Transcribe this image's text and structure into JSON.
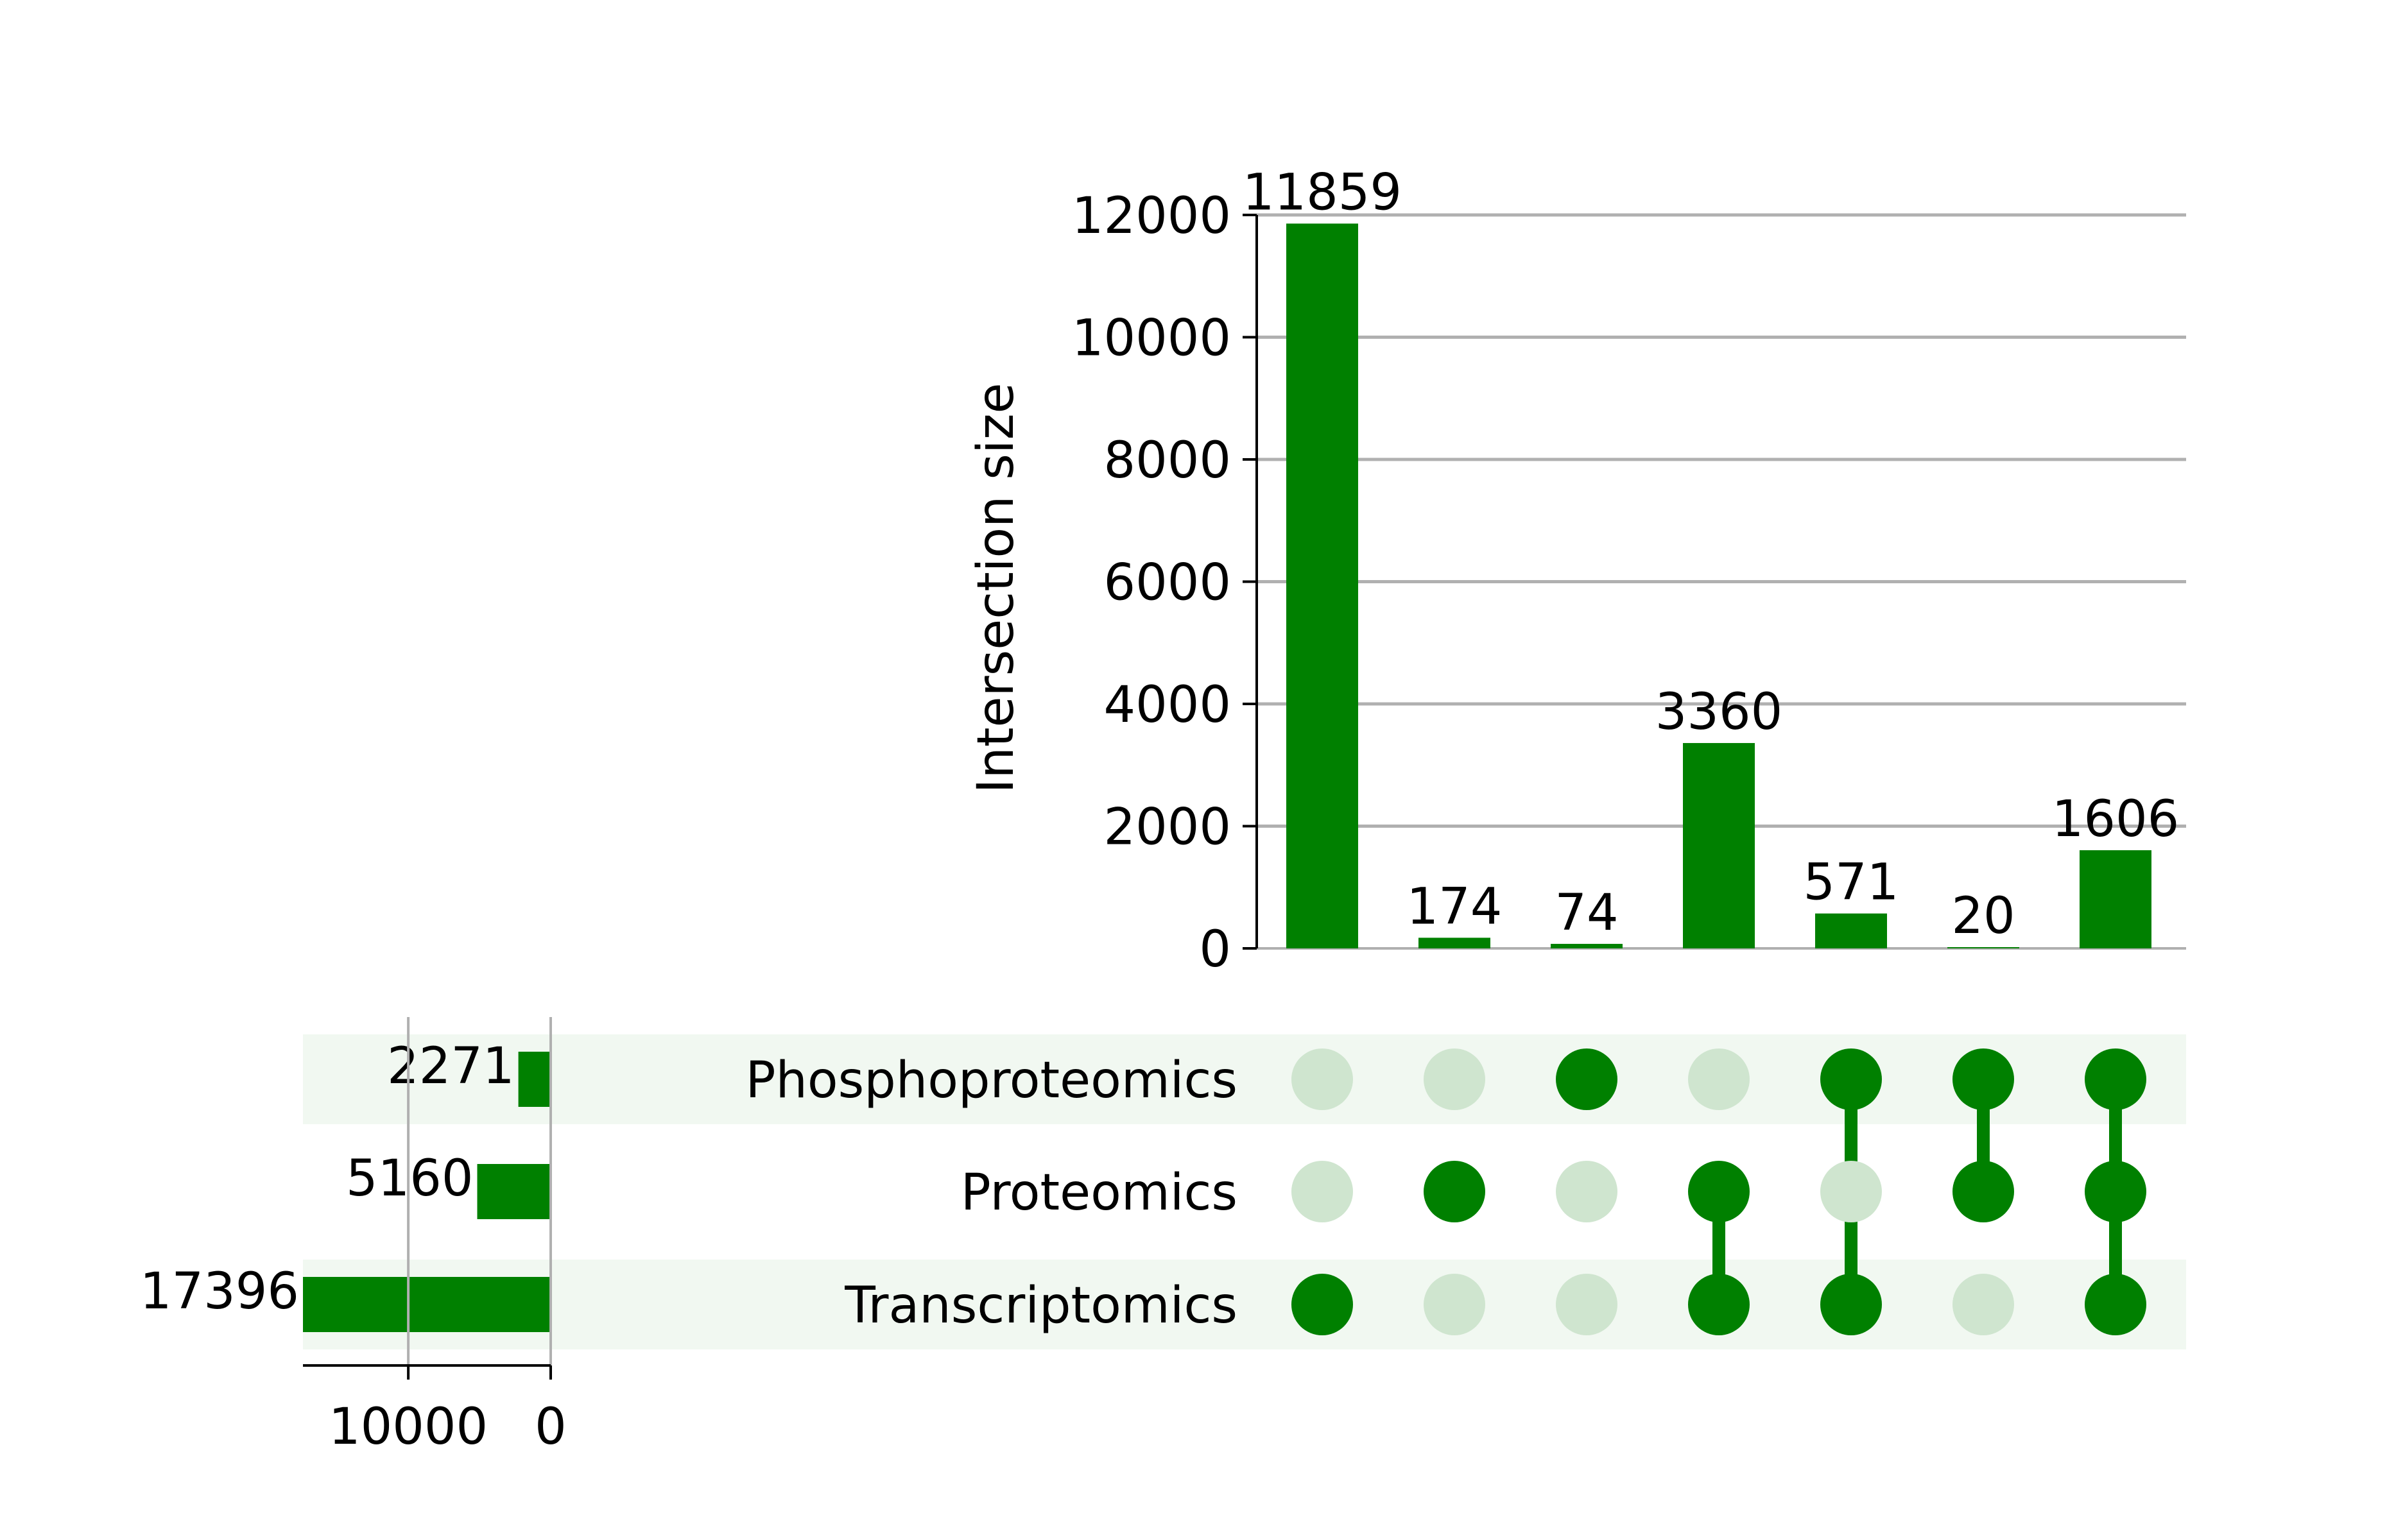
{
  "chart_data": {
    "type": "upset",
    "sets": [
      "Phosphoproteomics",
      "Proteomics",
      "Transcriptomics"
    ],
    "set_sizes": [
      2271,
      5160,
      17396
    ],
    "intersections": [
      {
        "members": [
          "Transcriptomics"
        ],
        "size": 11859
      },
      {
        "members": [
          "Proteomics"
        ],
        "size": 174
      },
      {
        "members": [
          "Phosphoproteomics"
        ],
        "size": 74
      },
      {
        "members": [
          "Proteomics",
          "Transcriptomics"
        ],
        "size": 3360
      },
      {
        "members": [
          "Phosphoproteomics",
          "Transcriptomics"
        ],
        "size": 571
      },
      {
        "members": [
          "Phosphoproteomics",
          "Proteomics"
        ],
        "size": 20
      },
      {
        "members": [
          "Phosphoproteomics",
          "Proteomics",
          "Transcriptomics"
        ],
        "size": 1606
      }
    ],
    "ylabel": "Intersection size",
    "ylim": [
      0,
      12000
    ],
    "yticks": [
      0,
      2000,
      4000,
      6000,
      8000,
      10000,
      12000
    ],
    "set_size_ticks": [
      10000,
      0
    ],
    "grid": true,
    "colors": {
      "bar": "#008000",
      "dot_active": "#008000",
      "dot_inactive": "#cfe5cf",
      "row_shade": "#f1f8f1",
      "grid": "#b0b0b0"
    }
  }
}
